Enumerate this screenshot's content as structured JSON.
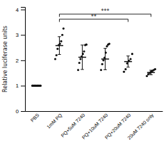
{
  "chart_data": {
    "type": "dot",
    "categories": [
      "PBS",
      "1mM PQ",
      "PQ+5uM 7240",
      "PQ+10uM 7240",
      "PQ+20uM 7240",
      "20uM 7240 only"
    ],
    "values": [
      1.0,
      2.58,
      2.12,
      2.05,
      1.95,
      1.52
    ],
    "errors": [
      0.02,
      0.35,
      0.48,
      0.42,
      0.22,
      0.09
    ],
    "points": [
      [
        1.0,
        1.0,
        1.0,
        1.0,
        1.0,
        1.0,
        1.0,
        1.0,
        1.0,
        1.0
      ],
      [
        2.05,
        2.2,
        2.45,
        2.6,
        2.65,
        2.75,
        3.0,
        3.25
      ],
      [
        1.62,
        1.9,
        2.05,
        2.15,
        2.25,
        2.35,
        2.6,
        2.62
      ],
      [
        1.62,
        1.85,
        2.0,
        2.1,
        2.3,
        2.55,
        2.62,
        2.65
      ],
      [
        1.55,
        1.65,
        1.88,
        1.98,
        2.05,
        2.25
      ],
      [
        1.38,
        1.45,
        1.5,
        1.55,
        1.58,
        1.62,
        1.65
      ]
    ],
    "annotations": [
      {
        "text": "**",
        "from": "1mM PQ",
        "to": "PQ+20uM 7240",
        "y": 3.62
      },
      {
        "text": "***",
        "from": "1mM PQ",
        "to": "20uM 7240 only",
        "y": 3.82
      }
    ],
    "ylabel": "Relative luciferase units",
    "ylim": [
      0,
      4.1
    ],
    "yticks": [
      0,
      1,
      2,
      3,
      4
    ],
    "color": "#111111"
  }
}
